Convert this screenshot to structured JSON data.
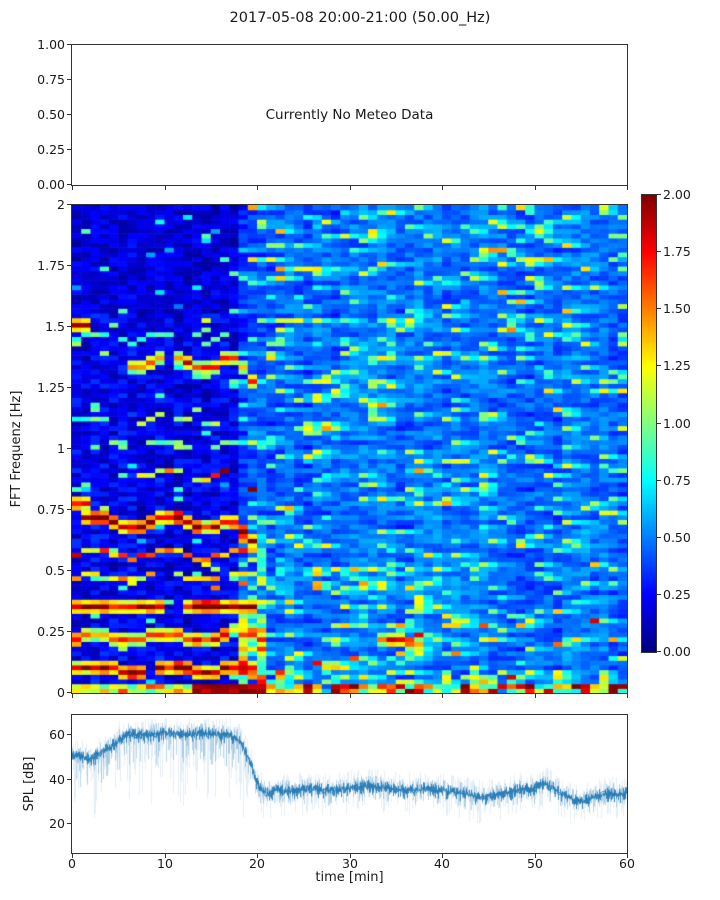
{
  "figure": {
    "title": "2017-05-08 20:00-21:00 (50.00_Hz)",
    "background": "#ffffff",
    "spine_color": "#333333",
    "text_color": "#1a1a1a"
  },
  "chart_data": [
    {
      "id": "meteo",
      "type": "empty",
      "message": "Currently No Meteo Data",
      "ylim": [
        0,
        1
      ],
      "yticks": [
        {
          "v": 1.0,
          "label": "1.00"
        },
        {
          "v": 0.75,
          "label": "0.75"
        },
        {
          "v": 0.5,
          "label": "0.50"
        },
        {
          "v": 0.25,
          "label": "0.25"
        },
        {
          "v": 0.0,
          "label": "0.00"
        }
      ],
      "xticks": [
        0,
        10,
        20,
        30,
        40,
        50,
        60
      ]
    },
    {
      "id": "spectrogram",
      "type": "heatmap",
      "colormap": "jet",
      "vmin": 0,
      "vmax": 2,
      "xlim": [
        0,
        60
      ],
      "ylim": [
        0,
        2
      ],
      "ylabel": "FFT Frequenz [Hz]",
      "yticks": [
        {
          "v": 2,
          "label": "2"
        },
        {
          "v": 1.75,
          "label": "1.75"
        },
        {
          "v": 1.5,
          "label": "1.5"
        },
        {
          "v": 1.25,
          "label": "1.25"
        },
        {
          "v": 1,
          "label": "1"
        },
        {
          "v": 0.75,
          "label": "0.75"
        },
        {
          "v": 0.5,
          "label": "0.5"
        },
        {
          "v": 0.25,
          "label": "0.25"
        },
        {
          "v": 0,
          "label": "0"
        }
      ],
      "xticks": [
        0,
        10,
        20,
        30,
        40,
        50,
        60
      ],
      "colorbar": {
        "ticks": [
          {
            "v": 2.0,
            "label": "2.00"
          },
          {
            "v": 1.75,
            "label": "1.75"
          },
          {
            "v": 1.5,
            "label": "1.50"
          },
          {
            "v": 1.25,
            "label": "1.25"
          },
          {
            "v": 1.0,
            "label": "1.00"
          },
          {
            "v": 0.75,
            "label": "0.75"
          },
          {
            "v": 0.5,
            "label": "0.50"
          },
          {
            "v": 0.25,
            "label": "0.25"
          },
          {
            "v": 0.0,
            "label": "0.00"
          }
        ]
      },
      "resolution": {
        "cols": 60,
        "rows": 104
      },
      "seed": 20170508,
      "background_noise": {
        "left_base": 0.07,
        "left_span": 0.28,
        "left_speckle_p": 0.05,
        "right_base": 0.24,
        "right_span": 0.3,
        "right_speckle_p": 0.1,
        "right_yellow_p": 0.012,
        "transition_min": 18.5
      },
      "bottom_band": {
        "hot_t0": 12.5,
        "hot_t1": 21,
        "right_boost_ranges": [
          [
            29,
            45
          ],
          [
            47,
            60
          ]
        ]
      },
      "tonal_features": [
        {
          "f": 1.5,
          "t0": 0,
          "t1": 2.2,
          "a": 2.0,
          "hw": 1,
          "w": 0.01,
          "skip": 0,
          "bend": false
        },
        {
          "f": 1.46,
          "t0": 0,
          "t1": 19,
          "a": 0.85,
          "hw": 0,
          "w": 0.02,
          "skip": 0.35,
          "bend": false
        },
        {
          "f": 1.36,
          "t0": 6.5,
          "t1": 19.5,
          "a": 1.55,
          "hw": 1,
          "w": 0.03,
          "skip": 0.12,
          "bend": true
        },
        {
          "f": 1.12,
          "t0": 6,
          "t1": 19.5,
          "a": 1.0,
          "hw": 0,
          "w": 0.02,
          "skip": 0.3,
          "bend": false
        },
        {
          "f": 1.13,
          "t0": 0,
          "t1": 2.5,
          "a": 0.95,
          "hw": 0,
          "w": 0,
          "skip": 0,
          "bend": false
        },
        {
          "f": 1.02,
          "t0": 3,
          "t1": 19.5,
          "a": 0.95,
          "hw": 0,
          "w": 0.015,
          "skip": 0.3,
          "bend": false
        },
        {
          "f": 0.9,
          "t0": 7,
          "t1": 20,
          "a": 1.3,
          "hw": 0,
          "w": 0.02,
          "skip": 0.15,
          "bend": true,
          "hot": 15
        },
        {
          "f": 0.78,
          "t0": 0,
          "t1": 2,
          "a": 1.9,
          "hw": 1,
          "w": 0,
          "skip": 0,
          "bend": false
        },
        {
          "f": 0.7,
          "t0": 1,
          "t1": 19.5,
          "a": 1.95,
          "hw": 1,
          "w": 0.02,
          "skip": 0.05,
          "bend": true
        },
        {
          "f": 0.57,
          "t0": 0,
          "t1": 19.5,
          "a": 1.5,
          "hw": 0,
          "w": 0.015,
          "skip": 0.15,
          "bend": false
        },
        {
          "f": 0.48,
          "t0": 0,
          "t1": 19.5,
          "a": 1.25,
          "hw": 0,
          "w": 0.015,
          "skip": 0.25,
          "bend": false
        },
        {
          "f": 0.44,
          "t0": 13,
          "t1": 19,
          "a": 1.5,
          "hw": 0,
          "w": 0.01,
          "skip": 0.2,
          "bend": false
        },
        {
          "f": 0.355,
          "t0": 0,
          "t1": 20,
          "a": 2.0,
          "hw": 1,
          "w": 0.008,
          "skip": 0.03,
          "bend": false
        },
        {
          "f": 0.23,
          "t0": 0,
          "t1": 20.5,
          "a": 1.7,
          "hw": 1,
          "w": 0.012,
          "skip": 0.1,
          "bend": false
        },
        {
          "f": 0.1,
          "t0": 0,
          "t1": 19.5,
          "a": 1.95,
          "hw": 1,
          "w": 0.008,
          "skip": 0.05,
          "bend": false
        },
        {
          "f": 0.21,
          "t0": 33,
          "t1": 37.5,
          "a": 1.55,
          "hw": 1,
          "w": 0.01,
          "skip": 0.25,
          "bend": false
        },
        {
          "f": 0.06,
          "t0": 40,
          "t1": 46,
          "a": 1.35,
          "hw": 1,
          "w": 0.01,
          "skip": 0.35,
          "bend": false
        }
      ],
      "note": "Strong tonal lines 0-19 min (dark-red bands near 0.10, 0.23, 0.355, 0.70 Hz), burst at 18-20 min below 0.6 Hz, then broadband blue with cyan streaks 20-60 min; hot band near 0 Hz"
    },
    {
      "id": "spl",
      "type": "line",
      "color": "#1f77b4",
      "xlabel": "time [min]",
      "ylabel": "SPL [dB]",
      "xlim": [
        0,
        60
      ],
      "ylim": [
        7,
        69
      ],
      "yticks": [
        {
          "v": 60,
          "label": "60"
        },
        {
          "v": 40,
          "label": "40"
        },
        {
          "v": 20,
          "label": "20"
        }
      ],
      "xticks": [
        {
          "v": 0,
          "label": "0"
        },
        {
          "v": 10,
          "label": "10"
        },
        {
          "v": 20,
          "label": "20"
        },
        {
          "v": 30,
          "label": "30"
        },
        {
          "v": 40,
          "label": "40"
        },
        {
          "v": 50,
          "label": "50"
        },
        {
          "v": 60,
          "label": "60"
        }
      ],
      "keypoints": [
        [
          0,
          51
        ],
        [
          1,
          50
        ],
        [
          2,
          49
        ],
        [
          3,
          52
        ],
        [
          4,
          54
        ],
        [
          5,
          58
        ],
        [
          6,
          60
        ],
        [
          8,
          60
        ],
        [
          10,
          61
        ],
        [
          12,
          60
        ],
        [
          14,
          61
        ],
        [
          16,
          60
        ],
        [
          17,
          60
        ],
        [
          18,
          58
        ],
        [
          19,
          50
        ],
        [
          19.5,
          44
        ],
        [
          20,
          38
        ],
        [
          20.5,
          35
        ],
        [
          21,
          34
        ],
        [
          22,
          35
        ],
        [
          24,
          35
        ],
        [
          26,
          36
        ],
        [
          28,
          35
        ],
        [
          30,
          36
        ],
        [
          32,
          37
        ],
        [
          34,
          36
        ],
        [
          36,
          35
        ],
        [
          38,
          36
        ],
        [
          40,
          35
        ],
        [
          42,
          34
        ],
        [
          44,
          32
        ],
        [
          46,
          33
        ],
        [
          48,
          35
        ],
        [
          50,
          36
        ],
        [
          51,
          38
        ],
        [
          52,
          36
        ],
        [
          53,
          33
        ],
        [
          54,
          31
        ],
        [
          55,
          30
        ],
        [
          56,
          31
        ],
        [
          57,
          33
        ],
        [
          58,
          34
        ],
        [
          59,
          33
        ],
        [
          60,
          34
        ]
      ],
      "noise_layers": [
        {
          "alpha": 0.12,
          "up": 8,
          "down_left": 32,
          "down_right": 12
        },
        {
          "alpha": 0.3,
          "up": 5,
          "down_left": 14,
          "down_right": 7
        },
        {
          "alpha": 0.85,
          "up": 3,
          "down_left": 4,
          "down_right": 4
        }
      ],
      "left_region_end_min": 19,
      "seed": 77
    }
  ]
}
